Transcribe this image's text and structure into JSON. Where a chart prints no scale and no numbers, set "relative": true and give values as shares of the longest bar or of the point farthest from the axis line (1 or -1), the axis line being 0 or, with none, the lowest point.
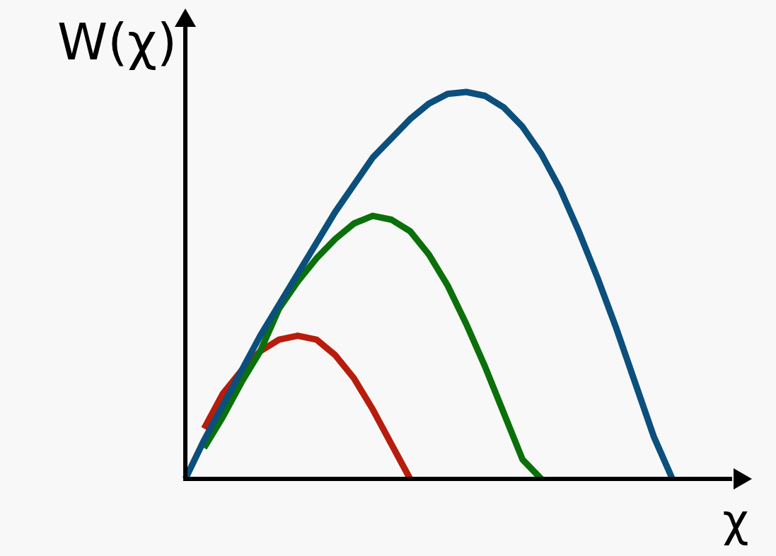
{
  "chart_data": {
    "type": "line",
    "relative": true,
    "xlabel": "χ",
    "ylabel": "W(χ)",
    "grid": false,
    "marker": "none",
    "line_style": "solid",
    "tick_labels": false,
    "categories": [
      null,
      null,
      null,
      null,
      null,
      null,
      null,
      null,
      null,
      null,
      null,
      null,
      null,
      null,
      null,
      null,
      null,
      null,
      null,
      null,
      null,
      null,
      null,
      null,
      null,
      null,
      null,
      null,
      null,
      null
    ],
    "series": [
      {
        "color": "#0b4f7c",
        "values": [
          0,
          0.1,
          0.19,
          0.28,
          0.37,
          0.45,
          0.53,
          0.61,
          0.69,
          0.76,
          0.83,
          0.88,
          0.93,
          0.97,
          0.995,
          1.0,
          0.99,
          0.96,
          0.91,
          0.84,
          0.75,
          0.64,
          0.52,
          0.39,
          0.25,
          0.11,
          0,
          null,
          null,
          null
        ]
      },
      {
        "color": "#0a700a",
        "values": [
          null,
          0.08,
          0.16,
          0.25,
          0.33,
          0.44,
          0.51,
          0.57,
          0.62,
          0.66,
          0.68,
          0.67,
          0.64,
          0.58,
          0.5,
          0.4,
          0.29,
          0.17,
          0.05,
          0,
          null,
          null,
          null,
          null,
          null,
          null,
          null,
          null,
          null,
          null
        ]
      },
      {
        "color": "#b81c0c",
        "values": [
          null,
          0.13,
          0.22,
          0.28,
          0.33,
          0.36,
          0.37,
          0.36,
          0.32,
          0.26,
          0.18,
          0.09,
          0,
          null,
          null,
          null,
          null,
          null,
          null,
          null,
          null,
          null,
          null,
          null,
          null,
          null,
          null,
          null,
          null,
          null
        ]
      }
    ]
  }
}
